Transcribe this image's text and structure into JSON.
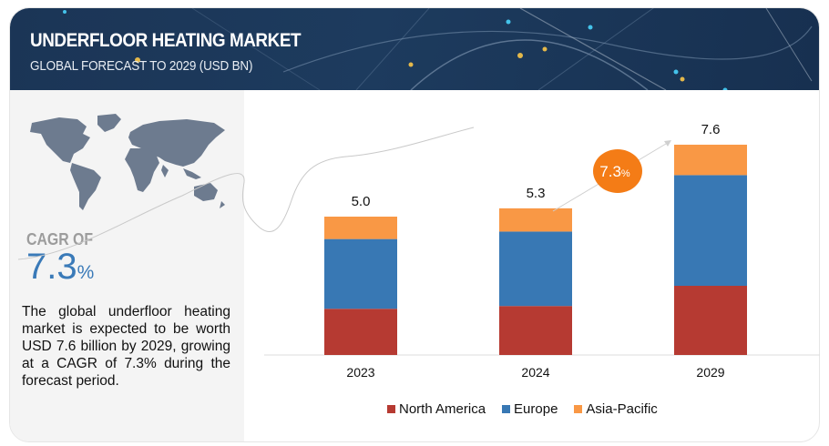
{
  "header": {
    "title": "UNDERFLOOR HEATING MARKET",
    "subtitle": "GLOBAL FORECAST TO 2029 (USD BN)"
  },
  "left_panel": {
    "map_icon": "world-map-icon",
    "cagr_label": "CAGR OF",
    "cagr_number": "7.3",
    "cagr_percent": "%",
    "description": "The global underfloor heating market is expected to be worth USD 7.6 billion by 2029, growing at a CAGR of 7.3% during the forecast period."
  },
  "cagr_bubble": {
    "number": "7.3",
    "percent": "%",
    "color": "#f47c16"
  },
  "chart_data": {
    "type": "bar",
    "stacked": true,
    "title": "Underfloor Heating Market, Global Forecast to 2029 (USD BN)",
    "xlabel": "",
    "ylabel": "",
    "categories": [
      "2023",
      "2024",
      "2029"
    ],
    "totals": [
      5.0,
      5.3,
      7.6
    ],
    "total_labels": [
      "5.0",
      "5.3",
      "7.6"
    ],
    "series": [
      {
        "name": "North America",
        "color": "#b63a32",
        "values": [
          1.67,
          1.77,
          2.5
        ]
      },
      {
        "name": "Europe",
        "color": "#3878b4",
        "values": [
          2.52,
          2.69,
          4.0
        ]
      },
      {
        "name": "Asia-Pacific",
        "color": "#f99845",
        "values": [
          0.81,
          0.84,
          1.1
        ]
      }
    ],
    "ylim": [
      0,
      8
    ],
    "grid": false,
    "legend": "bottom",
    "annotation": "7.3% CAGR (2024 to 2029)"
  }
}
